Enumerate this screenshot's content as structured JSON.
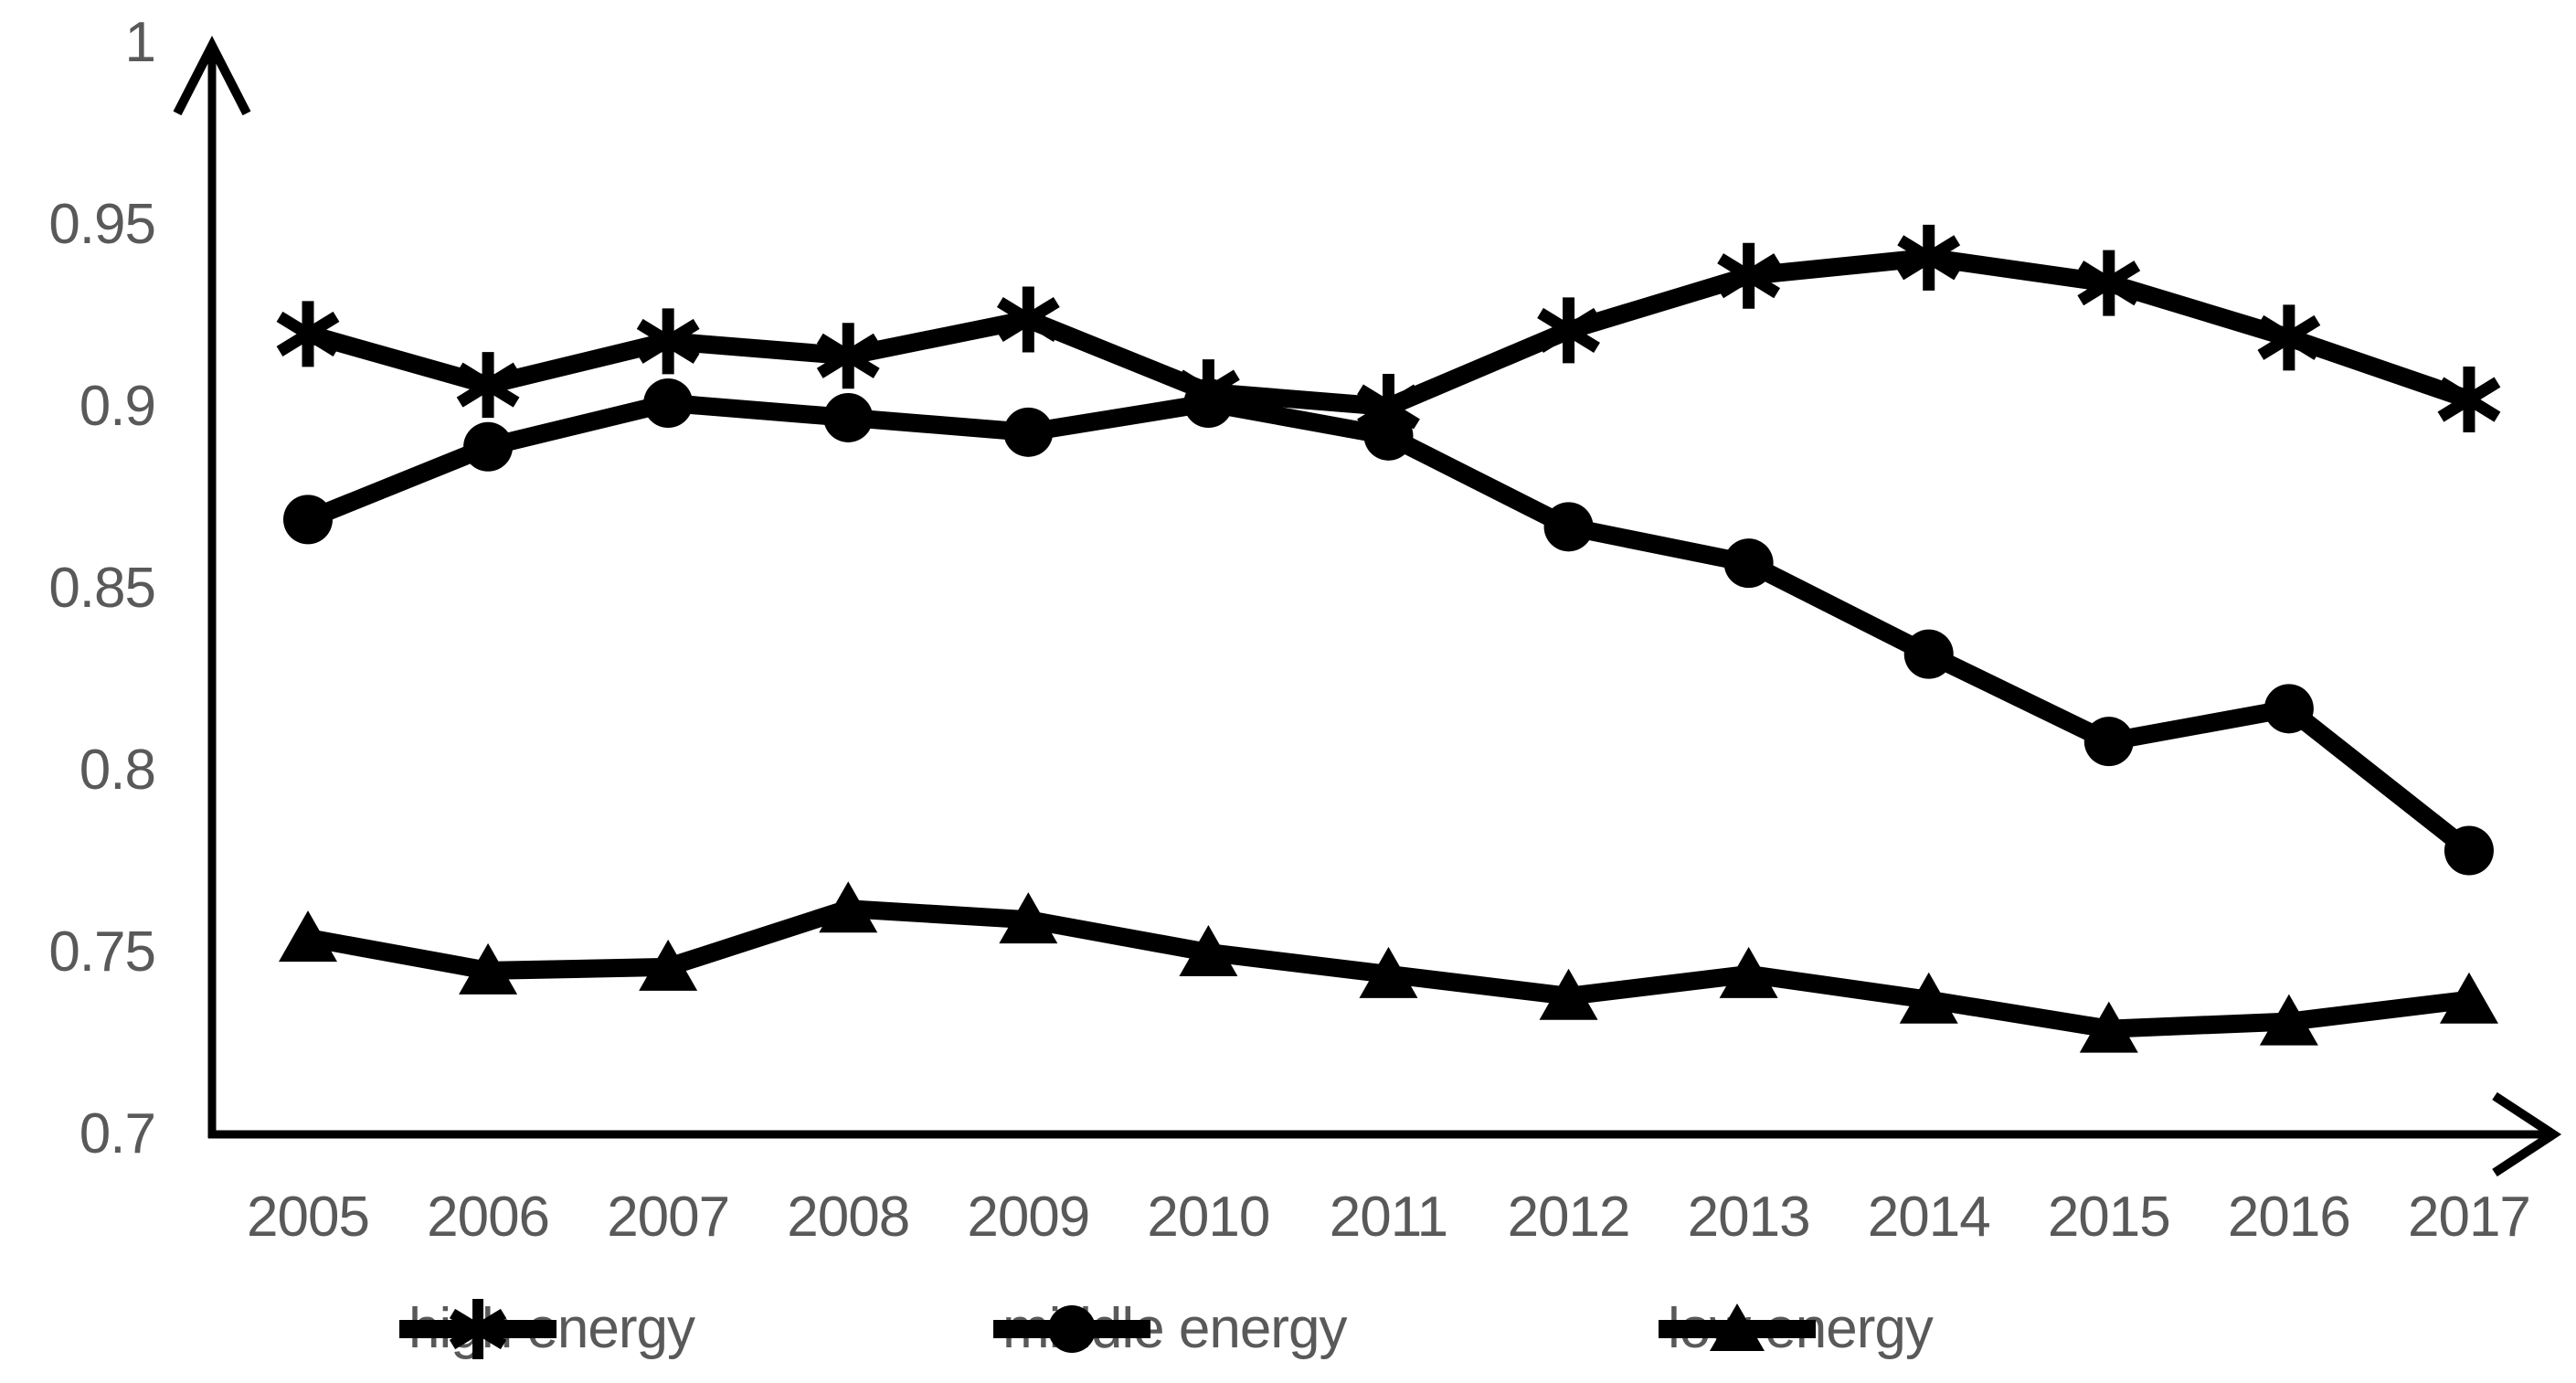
{
  "chart_data": {
    "type": "line",
    "title": "",
    "xlabel": "",
    "ylabel": "",
    "categories": [
      "2005",
      "2006",
      "2007",
      "2008",
      "2009",
      "2010",
      "2011",
      "2012",
      "2013",
      "2014",
      "2015",
      "2016",
      "2017"
    ],
    "series": [
      {
        "name": "high energy",
        "marker": "asterisk",
        "values": [
          0.92,
          0.906,
          0.918,
          0.914,
          0.924,
          0.904,
          0.9,
          0.921,
          0.936,
          0.941,
          0.934,
          0.919,
          0.902
        ]
      },
      {
        "name": "middle energy",
        "marker": "circle",
        "values": [
          0.869,
          0.889,
          0.901,
          0.897,
          0.893,
          0.901,
          0.892,
          0.867,
          0.857,
          0.832,
          0.808,
          0.817,
          0.778
        ]
      },
      {
        "name": "low energy",
        "marker": "triangle",
        "values": [
          0.754,
          0.745,
          0.746,
          0.762,
          0.759,
          0.75,
          0.744,
          0.738,
          0.744,
          0.737,
          0.729,
          0.731,
          0.737
        ]
      }
    ],
    "ylim": [
      0.7,
      1.0
    ],
    "ytick_step": 0.05,
    "yticks": [
      "1",
      "0.95",
      "0.9",
      "0.85",
      "0.8",
      "0.75",
      "0.7"
    ],
    "grid": false,
    "legend_position": "bottom",
    "line_color": "#000000",
    "axis_color": "#000000",
    "label_color": "#595959",
    "background": "#ffffff"
  }
}
